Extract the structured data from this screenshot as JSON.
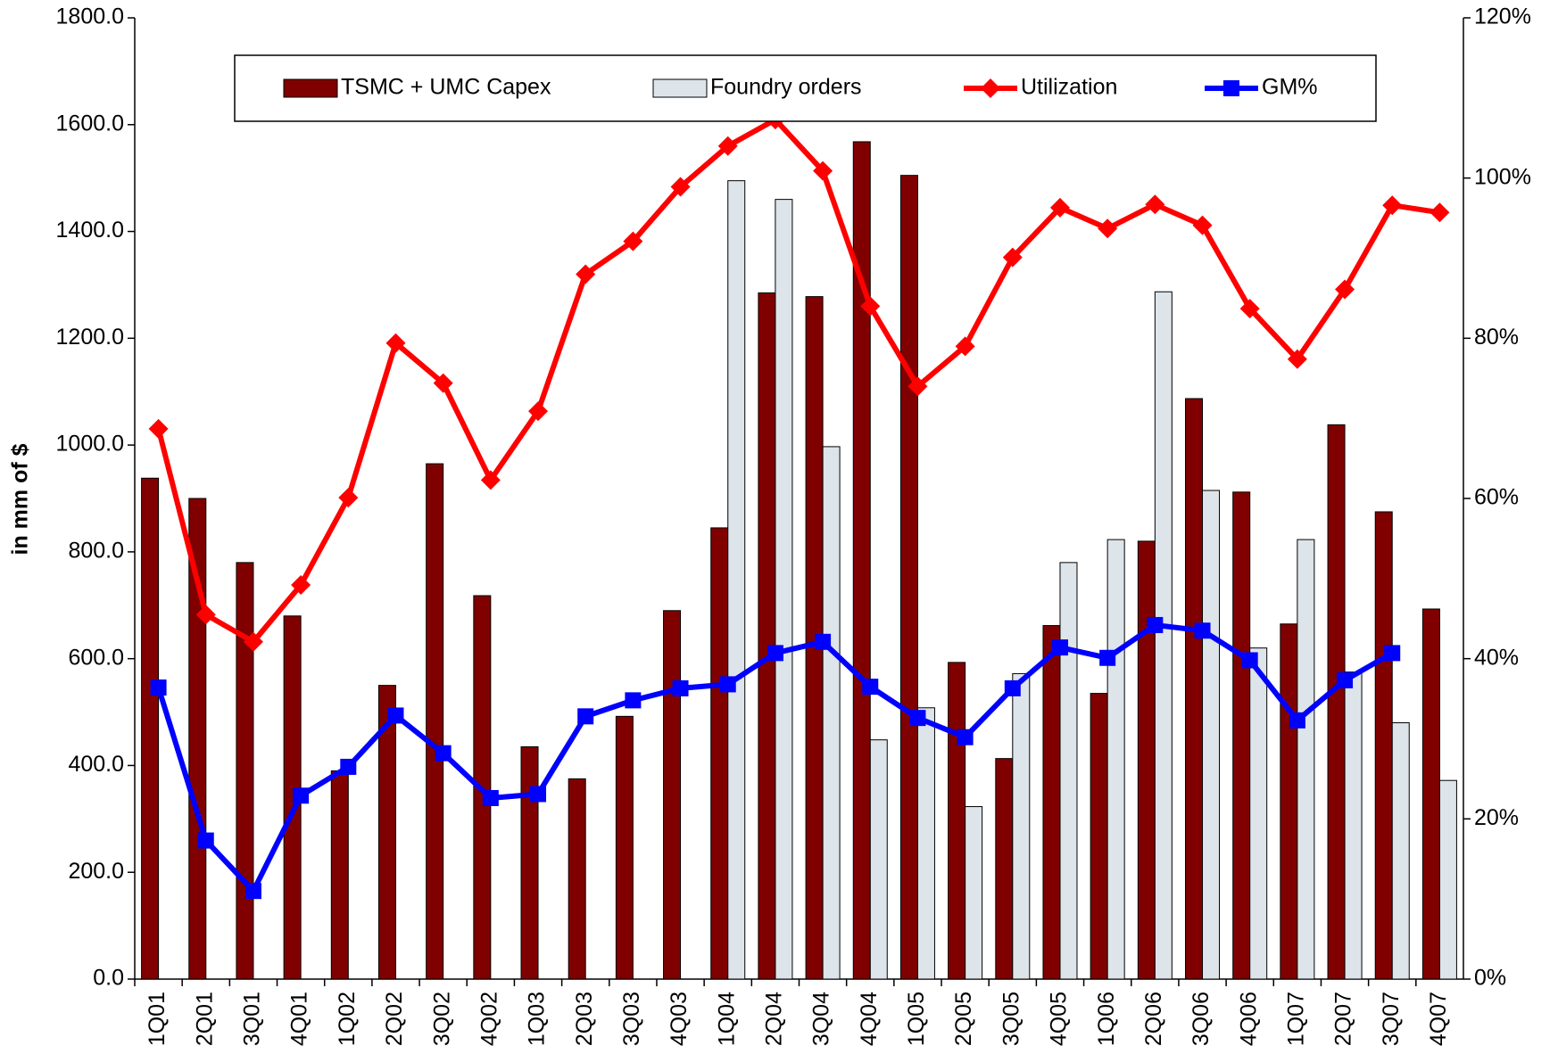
{
  "chart_data": {
    "type": "bar-line",
    "y_label": "in mm of $",
    "categories": [
      "1Q01",
      "2Q01",
      "3Q01",
      "4Q01",
      "1Q02",
      "2Q02",
      "3Q02",
      "4Q02",
      "1Q03",
      "2Q03",
      "3Q03",
      "4Q03",
      "1Q04",
      "2Q04",
      "3Q04",
      "4Q04",
      "1Q05",
      "2Q05",
      "3Q05",
      "4Q05",
      "1Q06",
      "2Q06",
      "3Q06",
      "4Q06",
      "1Q07",
      "2Q07",
      "3Q07",
      "4Q07"
    ],
    "series": [
      {
        "name": "TSMC + UMC Capex",
        "kind": "bar",
        "color": "#800000",
        "values": [
          938,
          900,
          780,
          680,
          390,
          550,
          965,
          718,
          435,
          375,
          492,
          690,
          845,
          1285,
          1278,
          1568,
          1505,
          593,
          413,
          662,
          535,
          820,
          1087,
          912,
          665,
          1038,
          875,
          693
        ]
      },
      {
        "name": "Foundry orders",
        "kind": "bar",
        "color": "#dde4ea",
        "values": [
          null,
          null,
          null,
          null,
          null,
          null,
          null,
          null,
          null,
          null,
          null,
          null,
          1495,
          1460,
          997,
          448,
          508,
          323,
          572,
          780,
          823,
          1287,
          915,
          620,
          823,
          575,
          480,
          372
        ]
      },
      {
        "name": "Utilization",
        "kind": "line",
        "marker": "diamond",
        "axis": "y2",
        "color": "#ff0000",
        "values": [
          68.7,
          45.5,
          42.1,
          49.2,
          60.1,
          79.4,
          74.4,
          62.3,
          70.9,
          88.0,
          92.1,
          98.9,
          104.0,
          107.3,
          100.9,
          84.0,
          74.0,
          79.0,
          90.1,
          96.3,
          93.7,
          96.7,
          94.1,
          83.7,
          77.4,
          86.1,
          96.6,
          95.7
        ]
      },
      {
        "name": "GM%",
        "kind": "line",
        "marker": "square",
        "axis": "y2",
        "color": "#0000ff",
        "values": [
          36.4,
          17.3,
          11.0,
          22.9,
          26.5,
          32.9,
          28.2,
          22.6,
          23.1,
          32.8,
          34.8,
          36.3,
          36.8,
          40.7,
          42.1,
          36.5,
          32.6,
          30.2,
          36.3,
          41.4,
          40.1,
          44.2,
          43.5,
          39.8,
          32.3,
          37.3,
          40.7,
          null
        ]
      }
    ],
    "ylim": [
      0,
      1800
    ],
    "yticks": [
      {
        "value": 0,
        "label": "0.0"
      },
      {
        "value": 200,
        "label": "200.0"
      },
      {
        "value": 400,
        "label": "400.0"
      },
      {
        "value": 600,
        "label": "600.0"
      },
      {
        "value": 800,
        "label": "800.0"
      },
      {
        "value": 1000,
        "label": "1000.0"
      },
      {
        "value": 1200,
        "label": "1200.0"
      },
      {
        "value": 1400,
        "label": "1400.0"
      },
      {
        "value": 1600,
        "label": "1600.0"
      },
      {
        "value": 1800,
        "label": "1800.0"
      }
    ],
    "y2lim": [
      0,
      120
    ],
    "y2ticks": [
      {
        "value": 0,
        "label": "0%"
      },
      {
        "value": 20,
        "label": "20%"
      },
      {
        "value": 40,
        "label": "40%"
      },
      {
        "value": 60,
        "label": "60%"
      },
      {
        "value": 80,
        "label": "80%"
      },
      {
        "value": 100,
        "label": "100%"
      },
      {
        "value": 120,
        "label": "120%"
      }
    ],
    "legend": "top"
  }
}
